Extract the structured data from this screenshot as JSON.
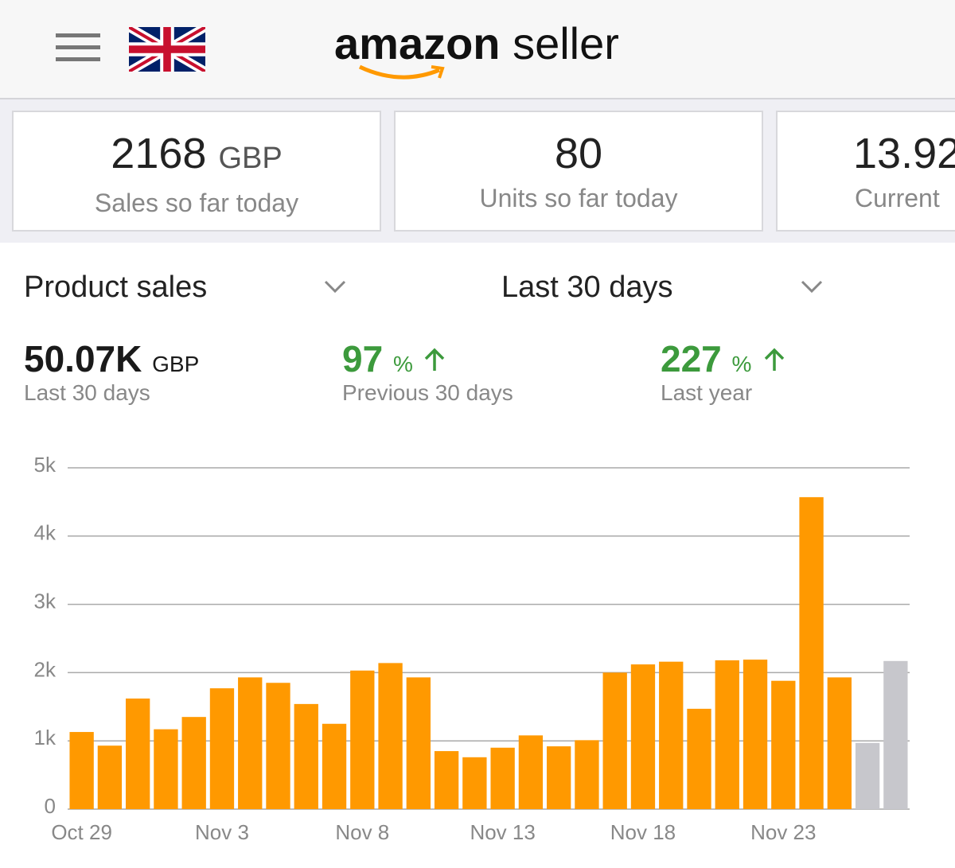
{
  "header": {
    "logo_brand": "amazon",
    "logo_product": "seller"
  },
  "cards": [
    {
      "value": "2168",
      "unit": "GBP",
      "label": "Sales so far today"
    },
    {
      "value": "80",
      "label": "Units so far today"
    },
    {
      "value": "13.92",
      "label": "Current"
    }
  ],
  "selectors": {
    "metric": "Product sales",
    "period": "Last 30 days"
  },
  "summary": [
    {
      "value": "50.07K",
      "unit": "GBP",
      "label": "Last 30 days"
    },
    {
      "value": "97",
      "unit": "%",
      "label": "Previous 30 days"
    },
    {
      "value": "227",
      "unit": "%",
      "label": "Last year"
    }
  ],
  "chart_data": {
    "type": "bar",
    "categories": [
      "Oct 29",
      null,
      null,
      null,
      null,
      "Nov 3",
      null,
      null,
      null,
      null,
      "Nov 8",
      null,
      null,
      null,
      null,
      "Nov 13",
      null,
      null,
      null,
      null,
      "Nov 18",
      null,
      null,
      null,
      null,
      "Nov 23",
      null,
      null,
      null,
      null
    ],
    "values": [
      1130,
      930,
      1620,
      1170,
      1350,
      1770,
      1930,
      1850,
      1540,
      1250,
      2030,
      2140,
      1930,
      850,
      760,
      900,
      1080,
      920,
      1010,
      2000,
      2120,
      2160,
      1470,
      2180,
      2190,
      1880,
      4570,
      1930,
      970,
      2170
    ],
    "colors": [
      "#ff9900",
      "#ff9900",
      "#ff9900",
      "#ff9900",
      "#ff9900",
      "#ff9900",
      "#ff9900",
      "#ff9900",
      "#ff9900",
      "#ff9900",
      "#ff9900",
      "#ff9900",
      "#ff9900",
      "#ff9900",
      "#ff9900",
      "#ff9900",
      "#ff9900",
      "#ff9900",
      "#ff9900",
      "#ff9900",
      "#ff9900",
      "#ff9900",
      "#ff9900",
      "#ff9900",
      "#ff9900",
      "#ff9900",
      "#ff9900",
      "#ff9900",
      "#c7c7cc",
      "#c7c7cc"
    ],
    "ylim": [
      0,
      5000
    ],
    "yticks": [
      0,
      {
        "value": 1000,
        "label": "1k"
      },
      {
        "value": 2000,
        "label": "2k"
      },
      {
        "value": 3000,
        "label": "3k"
      },
      {
        "value": 4000,
        "label": "4k"
      },
      {
        "value": 5000,
        "label": "5k"
      }
    ],
    "grid": true
  }
}
